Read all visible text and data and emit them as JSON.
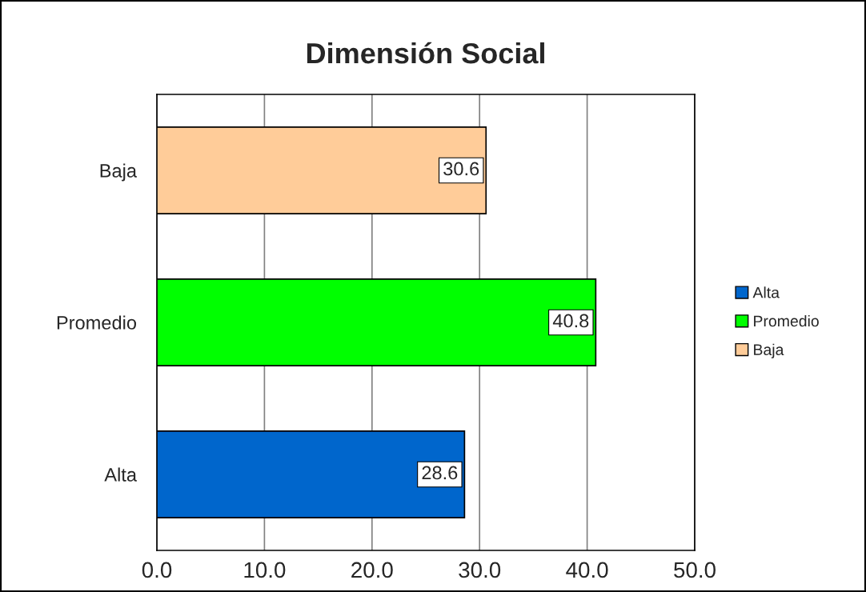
{
  "chart_data": {
    "type": "bar",
    "orientation": "horizontal",
    "title": "Dimensión Social",
    "categories": [
      "Baja",
      "Promedio",
      "Alta"
    ],
    "series": [
      {
        "name": "Alta",
        "color": "#0066cc",
        "values": [
          null,
          null,
          28.6
        ]
      },
      {
        "name": "Promedio",
        "color": "#00ff00",
        "values": [
          null,
          40.8,
          null
        ]
      },
      {
        "name": "Baja",
        "color": "#ffcc99",
        "values": [
          30.6,
          null,
          null
        ]
      }
    ],
    "xlim": [
      0,
      50
    ],
    "xticks": [
      {
        "value": 0,
        "label": "0.0"
      },
      {
        "value": 10,
        "label": "10.0"
      },
      {
        "value": 20,
        "label": "20.0"
      },
      {
        "value": 30,
        "label": "30.0"
      },
      {
        "value": 40,
        "label": "40.0"
      },
      {
        "value": 50,
        "label": "50.0"
      }
    ],
    "grid": "x",
    "legend": "right",
    "data_labels": true
  }
}
